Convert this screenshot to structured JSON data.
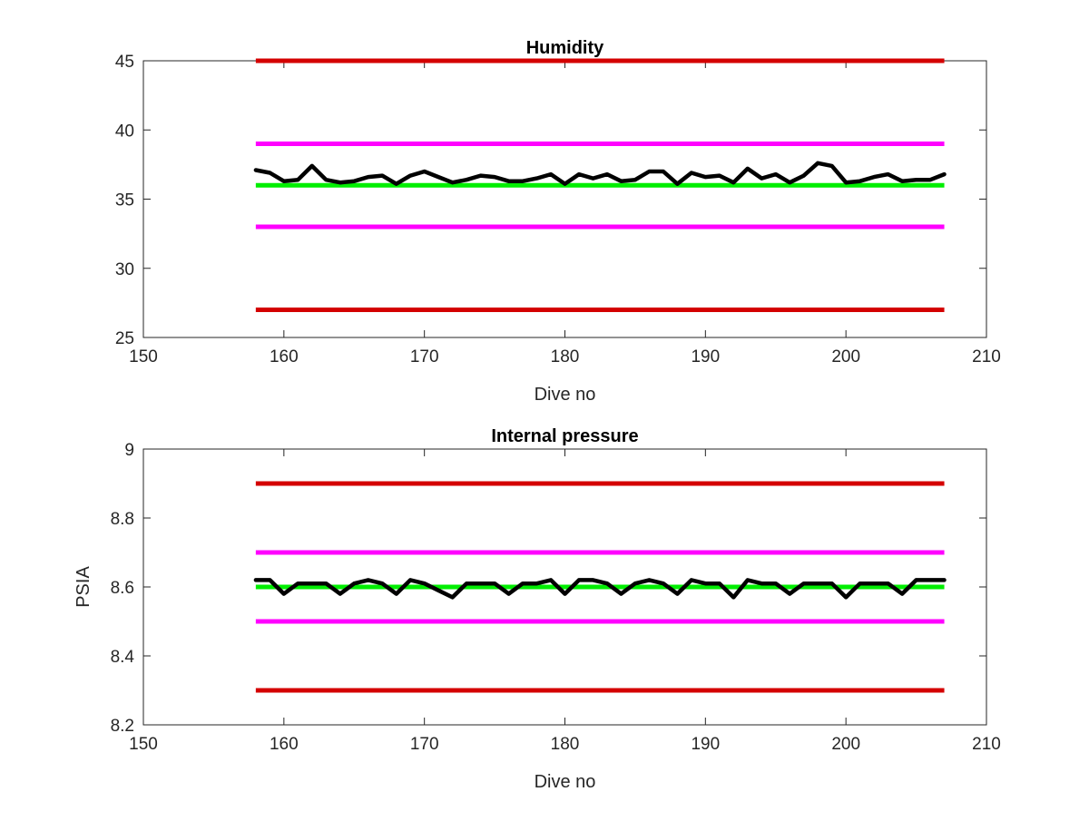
{
  "chart_data": [
    {
      "type": "line",
      "title": "Humidity",
      "xlabel": "Dive no",
      "ylabel": "",
      "xlim": [
        150,
        210
      ],
      "ylim": [
        25,
        45
      ],
      "xticks": [
        150,
        160,
        170,
        180,
        190,
        200,
        210
      ],
      "yticks": [
        25,
        30,
        35,
        40,
        45
      ],
      "grid": false,
      "box": true,
      "reference_lines": [
        {
          "y": 45,
          "x_range": [
            158,
            207
          ],
          "color": "#d40000"
        },
        {
          "y": 39,
          "x_range": [
            158,
            207
          ],
          "color": "#ff00ff"
        },
        {
          "y": 36,
          "x_range": [
            158,
            207
          ],
          "color": "#00ee00"
        },
        {
          "y": 33,
          "x_range": [
            158,
            207
          ],
          "color": "#ff00ff"
        },
        {
          "y": 27,
          "x_range": [
            158,
            207
          ],
          "color": "#d40000"
        }
      ],
      "series": [
        {
          "color": "#000000",
          "x": [
            158,
            159,
            160,
            161,
            162,
            163,
            164,
            165,
            166,
            167,
            168,
            169,
            170,
            171,
            172,
            173,
            174,
            175,
            176,
            177,
            178,
            179,
            180,
            181,
            182,
            183,
            184,
            185,
            186,
            187,
            188,
            189,
            190,
            191,
            192,
            193,
            194,
            195,
            196,
            197,
            198,
            199,
            200,
            201,
            202,
            203,
            204,
            205,
            206,
            207
          ],
          "y": [
            37.1,
            36.9,
            36.3,
            36.4,
            37.4,
            36.4,
            36.2,
            36.3,
            36.6,
            36.7,
            36.1,
            36.7,
            37.0,
            36.6,
            36.2,
            36.4,
            36.7,
            36.6,
            36.3,
            36.3,
            36.5,
            36.8,
            36.1,
            36.8,
            36.5,
            36.8,
            36.3,
            36.4,
            37.0,
            37.0,
            36.1,
            36.9,
            36.6,
            36.7,
            36.2,
            37.2,
            36.5,
            36.8,
            36.2,
            36.7,
            37.6,
            37.4,
            36.2,
            36.3,
            36.6,
            36.8,
            36.3,
            36.4,
            36.4,
            36.8
          ]
        }
      ]
    },
    {
      "type": "line",
      "title": "Internal pressure",
      "xlabel": "Dive no",
      "ylabel": "PSIA",
      "xlim": [
        150,
        210
      ],
      "ylim": [
        8.2,
        9.0
      ],
      "xticks": [
        150,
        160,
        170,
        180,
        190,
        200,
        210
      ],
      "yticks": [
        8.2,
        8.4,
        8.6,
        8.8,
        9.0
      ],
      "ytick_labels": [
        "8.2",
        "8.4",
        "8.6",
        "8.8",
        "9"
      ],
      "grid": false,
      "box": true,
      "reference_lines": [
        {
          "y": 8.9,
          "x_range": [
            158,
            207
          ],
          "color": "#d40000"
        },
        {
          "y": 8.7,
          "x_range": [
            158,
            207
          ],
          "color": "#ff00ff"
        },
        {
          "y": 8.6,
          "x_range": [
            158,
            207
          ],
          "color": "#00ee00"
        },
        {
          "y": 8.5,
          "x_range": [
            158,
            207
          ],
          "color": "#ff00ff"
        },
        {
          "y": 8.3,
          "x_range": [
            158,
            207
          ],
          "color": "#d40000"
        }
      ],
      "series": [
        {
          "color": "#000000",
          "x": [
            158,
            159,
            160,
            161,
            162,
            163,
            164,
            165,
            166,
            167,
            168,
            169,
            170,
            171,
            172,
            173,
            174,
            175,
            176,
            177,
            178,
            179,
            180,
            181,
            182,
            183,
            184,
            185,
            186,
            187,
            188,
            189,
            190,
            191,
            192,
            193,
            194,
            195,
            196,
            197,
            198,
            199,
            200,
            201,
            202,
            203,
            204,
            205,
            206,
            207
          ],
          "y": [
            8.62,
            8.62,
            8.58,
            8.61,
            8.61,
            8.61,
            8.58,
            8.61,
            8.62,
            8.61,
            8.58,
            8.62,
            8.61,
            8.59,
            8.57,
            8.61,
            8.61,
            8.61,
            8.58,
            8.61,
            8.61,
            8.62,
            8.58,
            8.62,
            8.62,
            8.61,
            8.58,
            8.61,
            8.62,
            8.61,
            8.58,
            8.62,
            8.61,
            8.61,
            8.57,
            8.62,
            8.61,
            8.61,
            8.58,
            8.61,
            8.61,
            8.61,
            8.57,
            8.61,
            8.61,
            8.61,
            8.58,
            8.62,
            8.62,
            8.62
          ]
        }
      ]
    }
  ]
}
